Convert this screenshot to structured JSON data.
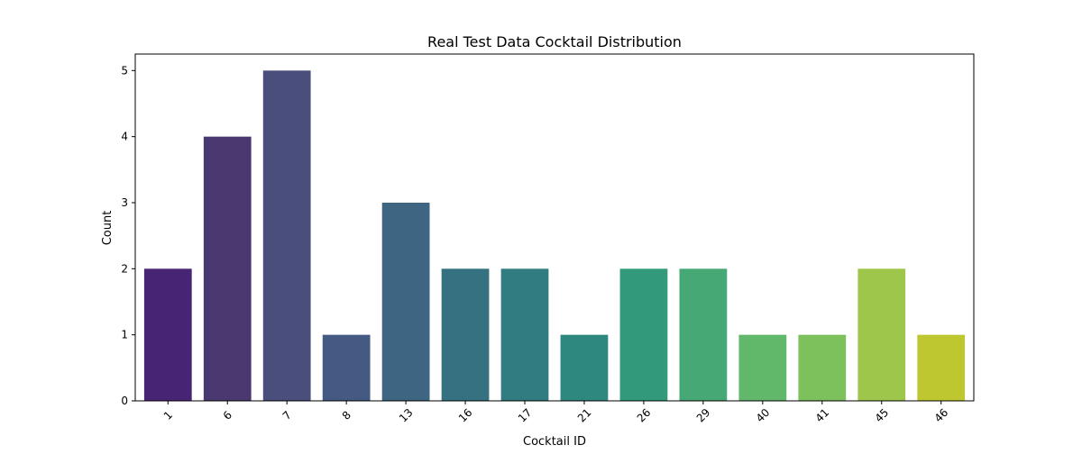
{
  "chart_data": {
    "type": "bar",
    "title": "Real Test Data Cocktail Distribution",
    "xlabel": "Cocktail ID",
    "ylabel": "Count",
    "categories": [
      "1",
      "6",
      "7",
      "8",
      "13",
      "16",
      "17",
      "21",
      "26",
      "29",
      "40",
      "41",
      "45",
      "46"
    ],
    "values": [
      2,
      4,
      5,
      1,
      3,
      2,
      2,
      1,
      2,
      2,
      1,
      1,
      2,
      1
    ],
    "ylim": [
      0,
      5.25
    ],
    "yticks": [
      0,
      1,
      2,
      3,
      4,
      5
    ],
    "grid": false,
    "legend": "none",
    "xtick_rotation": 45,
    "palette": "viridis",
    "colors": [
      "#482475",
      "#4a3970",
      "#4a4e7d",
      "#455a82",
      "#3e6581",
      "#357180",
      "#317c80",
      "#2f887f",
      "#329a7b",
      "#46a874",
      "#62b86a",
      "#7dc15d",
      "#9ec64b",
      "#bec72f"
    ]
  }
}
